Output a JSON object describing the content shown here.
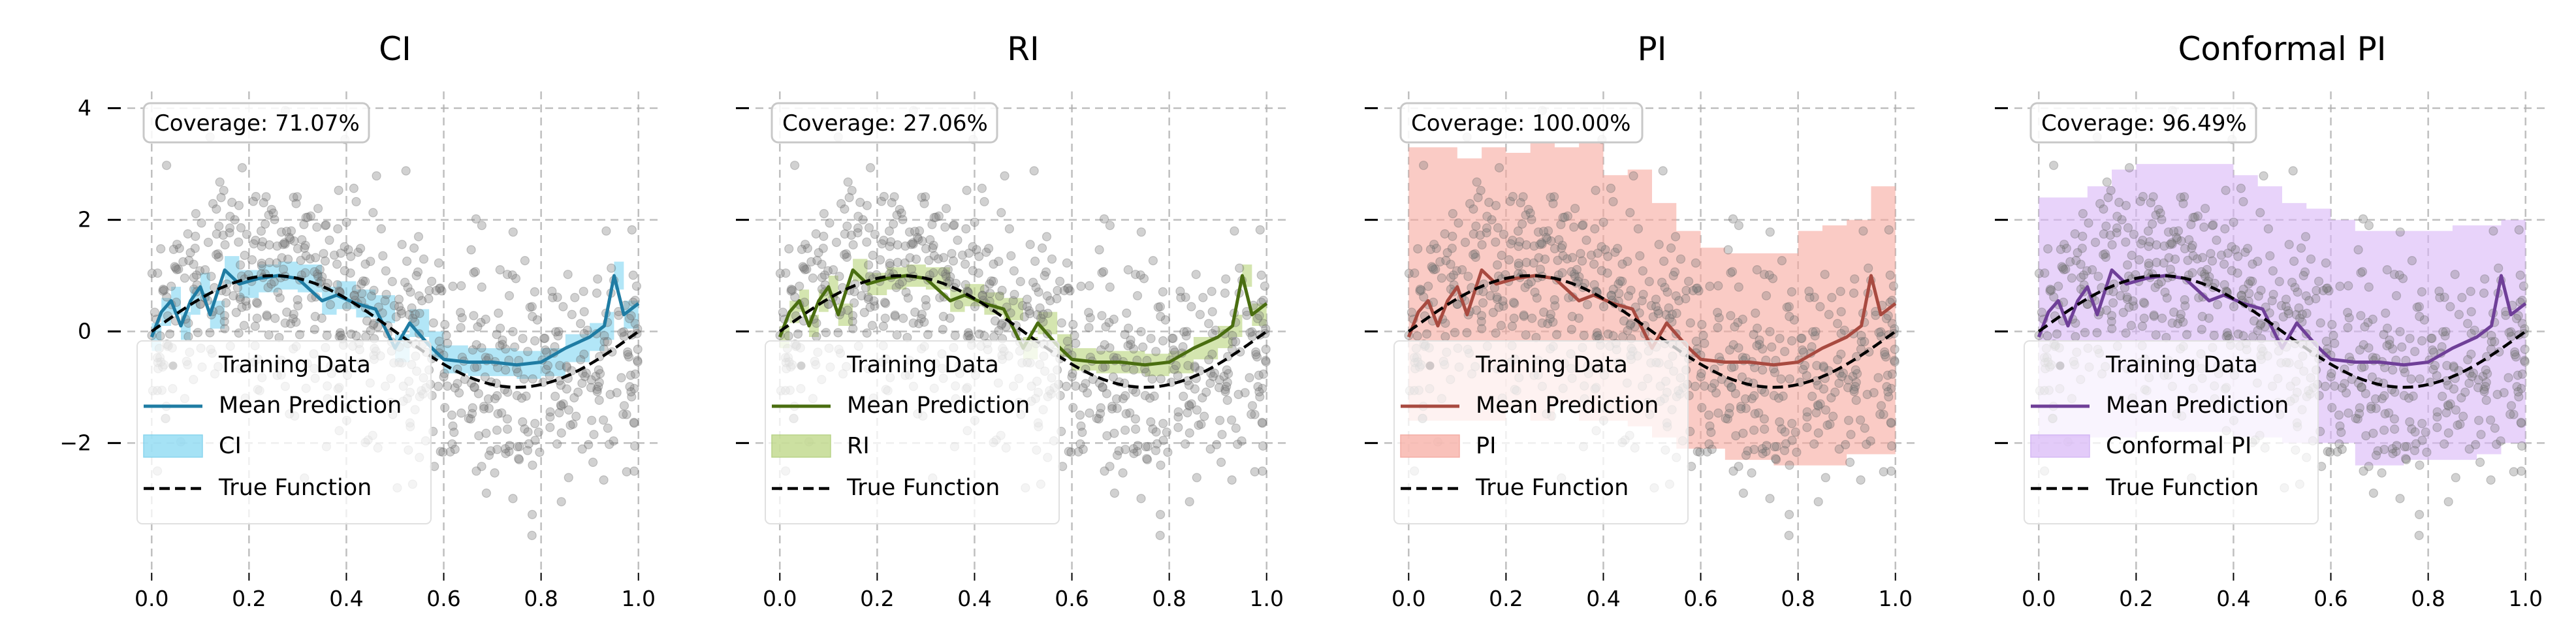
{
  "chart_data": [
    {
      "type": "line",
      "title": "CI",
      "band_label": "CI",
      "coverage_text": "Coverage: 71.07%",
      "xlim": [
        -0.05,
        1.05
      ],
      "ylim": [
        -4.3,
        4.3
      ],
      "xticks": [
        0.0,
        0.2,
        0.4,
        0.6,
        0.8,
        1.0
      ],
      "xtick_labels": [
        "0.0",
        "0.2",
        "0.4",
        "0.6",
        "0.8",
        "1.0"
      ],
      "yticks": [
        4,
        2,
        0,
        -2
      ],
      "ytick_labels": [
        "4",
        "2",
        "0",
        "−2"
      ],
      "grid": true,
      "legend_position": "lower-left",
      "colors": {
        "line": "#1f7ca3",
        "band": "#7fd6f2",
        "band_edge": "#59c4e8"
      },
      "legend": [
        "Training Data",
        "Mean Prediction",
        "CI",
        "True Function"
      ],
      "band_halfwidth": 0.25
    },
    {
      "type": "line",
      "title": "RI",
      "band_label": "RI",
      "coverage_text": "Coverage: 27.06%",
      "xlim": [
        -0.05,
        1.05
      ],
      "ylim": [
        -4.3,
        4.3
      ],
      "xticks": [
        0.0,
        0.2,
        0.4,
        0.6,
        0.8,
        1.0
      ],
      "xtick_labels": [
        "0.0",
        "0.2",
        "0.4",
        "0.6",
        "0.8",
        "1.0"
      ],
      "yticks": [
        4,
        2,
        0,
        -2
      ],
      "ytick_labels": [
        "4",
        "2",
        "0",
        "−2"
      ],
      "grid": true,
      "legend_position": "lower-left",
      "colors": {
        "line": "#4a6e10",
        "band": "#b7d37a",
        "band_edge": "#9cc258"
      },
      "legend": [
        "Training Data",
        "Mean Prediction",
        "RI",
        "True Function"
      ],
      "band_halfwidth": 0.2
    },
    {
      "type": "line",
      "title": "PI",
      "band_label": "PI",
      "coverage_text": "Coverage: 100.00%",
      "xlim": [
        -0.05,
        1.05
      ],
      "ylim": [
        -4.3,
        4.3
      ],
      "xticks": [
        0.0,
        0.2,
        0.4,
        0.6,
        0.8,
        1.0
      ],
      "xtick_labels": [
        "0.0",
        "0.2",
        "0.4",
        "0.6",
        "0.8",
        "1.0"
      ],
      "yticks": [
        4,
        2,
        0,
        -2
      ],
      "ytick_labels": [
        "4",
        "2",
        "0",
        "−2"
      ],
      "grid": true,
      "legend_position": "lower-left",
      "colors": {
        "line": "#a84a40",
        "band": "#f7a89e",
        "band_edge": "#f08c80"
      },
      "legend": [
        "Training Data",
        "Mean Prediction",
        "PI",
        "True Function"
      ],
      "band_lower": [
        -1.6,
        -1.6,
        -1.6,
        -1.6,
        -1.4,
        -1.6,
        -1.3,
        -1.6,
        -1.6,
        -1.7,
        -1.9,
        -2.1,
        -2.1,
        -2.3,
        -2.3,
        -2.4,
        -2.4,
        -2.4,
        -2.2,
        -2.2,
        -2.1
      ],
      "band_upper": [
        3.3,
        3.3,
        3.1,
        3.3,
        3.2,
        3.4,
        3.3,
        3.4,
        2.8,
        2.9,
        2.3,
        1.8,
        1.5,
        1.4,
        1.4,
        1.4,
        1.8,
        1.9,
        2.0,
        2.6,
        2.8
      ]
    },
    {
      "type": "line",
      "title": "Conformal PI",
      "band_label": "Conformal PI",
      "coverage_text": "Coverage: 96.49%",
      "xlim": [
        -0.05,
        1.05
      ],
      "ylim": [
        -4.3,
        4.3
      ],
      "xticks": [
        0.0,
        0.2,
        0.4,
        0.6,
        0.8,
        1.0
      ],
      "xtick_labels": [
        "0.0",
        "0.2",
        "0.4",
        "0.6",
        "0.8",
        "1.0"
      ],
      "yticks": [
        4,
        2,
        0,
        -2
      ],
      "ytick_labels": [
        "4",
        "2",
        "0",
        "−2"
      ],
      "grid": true,
      "legend_position": "lower-left",
      "colors": {
        "line": "#6f3f98",
        "band": "#d8b6f7",
        "band_edge": "#c49cf0"
      },
      "legend": [
        "Training Data",
        "Mean Prediction",
        "Conformal PI",
        "True Function"
      ],
      "band_lower": [
        -1.9,
        -1.9,
        -1.9,
        -1.9,
        -1.8,
        -1.8,
        -1.8,
        -1.8,
        -1.9,
        -1.9,
        -2.0,
        -2.0,
        -2.0,
        -2.4,
        -2.4,
        -2.3,
        -2.3,
        -2.3,
        -2.2,
        -2.0,
        -2.0
      ],
      "band_upper": [
        2.4,
        2.4,
        2.6,
        2.9,
        3.0,
        3.0,
        3.0,
        3.0,
        2.8,
        2.6,
        2.3,
        2.2,
        2.0,
        1.8,
        1.8,
        1.8,
        1.8,
        1.9,
        1.9,
        2.0,
        2.4
      ]
    }
  ],
  "shared": {
    "mean_x": [
      0.0,
      0.02,
      0.04,
      0.06,
      0.08,
      0.1,
      0.12,
      0.15,
      0.18,
      0.22,
      0.26,
      0.3,
      0.35,
      0.38,
      0.42,
      0.46,
      0.5,
      0.53,
      0.57,
      0.6,
      0.65,
      0.7,
      0.75,
      0.8,
      0.85,
      0.9,
      0.93,
      0.95,
      0.97,
      1.0
    ],
    "mean_y": [
      -0.1,
      0.35,
      0.55,
      0.1,
      0.55,
      0.8,
      0.3,
      1.1,
      0.85,
      0.95,
      1.0,
      0.95,
      0.55,
      0.65,
      0.5,
      0.4,
      -0.3,
      0.15,
      -0.25,
      -0.5,
      -0.55,
      -0.55,
      -0.6,
      -0.55,
      -0.3,
      -0.1,
      0.1,
      1.0,
      0.3,
      0.5
    ],
    "band_x": [
      0.0,
      0.05,
      0.1,
      0.15,
      0.2,
      0.25,
      0.3,
      0.35,
      0.4,
      0.45,
      0.5,
      0.55,
      0.6,
      0.65,
      0.7,
      0.75,
      0.8,
      0.85,
      0.9,
      0.95,
      1.0
    ],
    "true_function": "sin(2*pi*x)",
    "n_training_points": 700
  }
}
